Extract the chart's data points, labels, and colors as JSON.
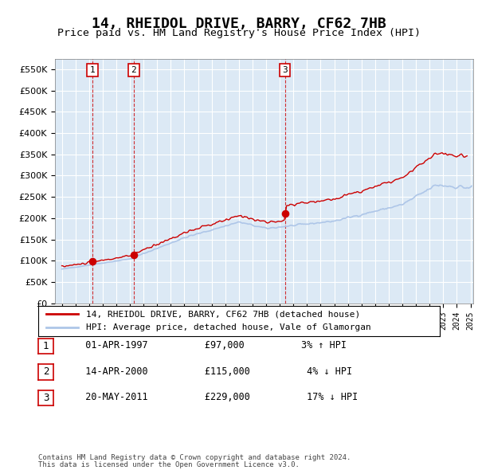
{
  "title": "14, RHEIDOL DRIVE, BARRY, CF62 7HB",
  "subtitle": "Price paid vs. HM Land Registry's House Price Index (HPI)",
  "footer1": "Contains HM Land Registry data © Crown copyright and database right 2024.",
  "footer2": "This data is licensed under the Open Government Licence v3.0.",
  "legend_line1": "14, RHEIDOL DRIVE, BARRY, CF62 7HB (detached house)",
  "legend_line2": "HPI: Average price, detached house, Vale of Glamorgan",
  "transactions": [
    {
      "num": 1,
      "date": "01-APR-1997",
      "price": 97000,
      "pct": "3%",
      "dir": "↑",
      "year": 1997.25
    },
    {
      "num": 2,
      "date": "14-APR-2000",
      "price": 115000,
      "pct": "4%",
      "dir": "↓",
      "year": 2000.28
    },
    {
      "num": 3,
      "date": "20-MAY-2011",
      "price": 229000,
      "pct": "17%",
      "dir": "↓",
      "year": 2011.38
    }
  ],
  "ylim": [
    0,
    575000
  ],
  "yticks": [
    0,
    50000,
    100000,
    150000,
    200000,
    250000,
    300000,
    350000,
    400000,
    450000,
    500000,
    550000
  ],
  "hpi_color": "#aec6e8",
  "price_color": "#cc0000",
  "dot_color": "#cc0000",
  "vline_color": "#cc0000",
  "background_color": "#dce9f5",
  "plot_bg": "#ffffff",
  "box_color": "#cc0000"
}
